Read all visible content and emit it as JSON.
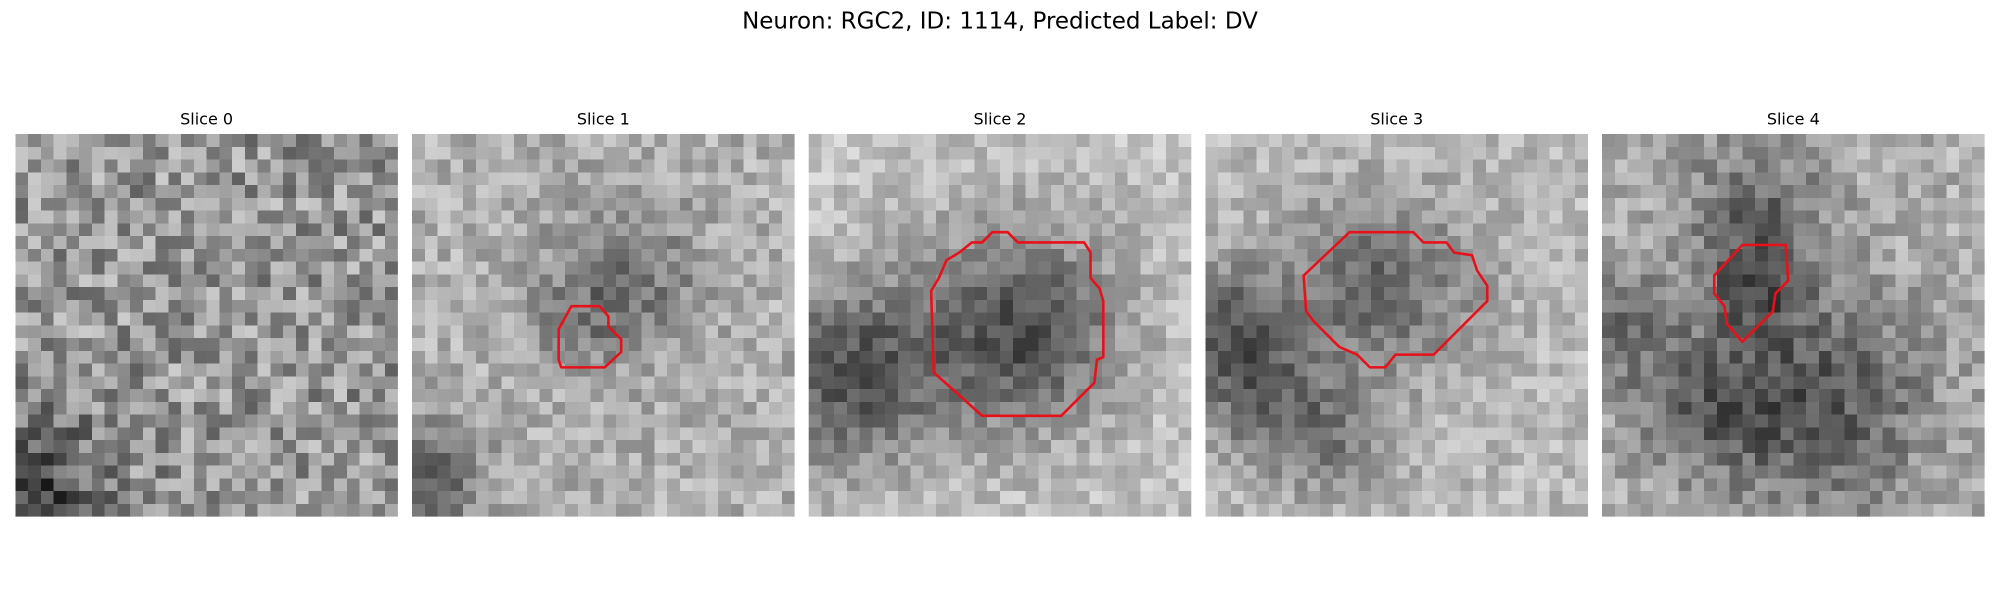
{
  "title": "Neuron: RGC2, ID: 1114, Predicted Label: DV",
  "panels": [
    {
      "title": "Slice 0"
    },
    {
      "title": "Slice 1"
    },
    {
      "title": "Slice 2"
    },
    {
      "title": "Slice 3"
    },
    {
      "title": "Slice 4"
    }
  ]
}
